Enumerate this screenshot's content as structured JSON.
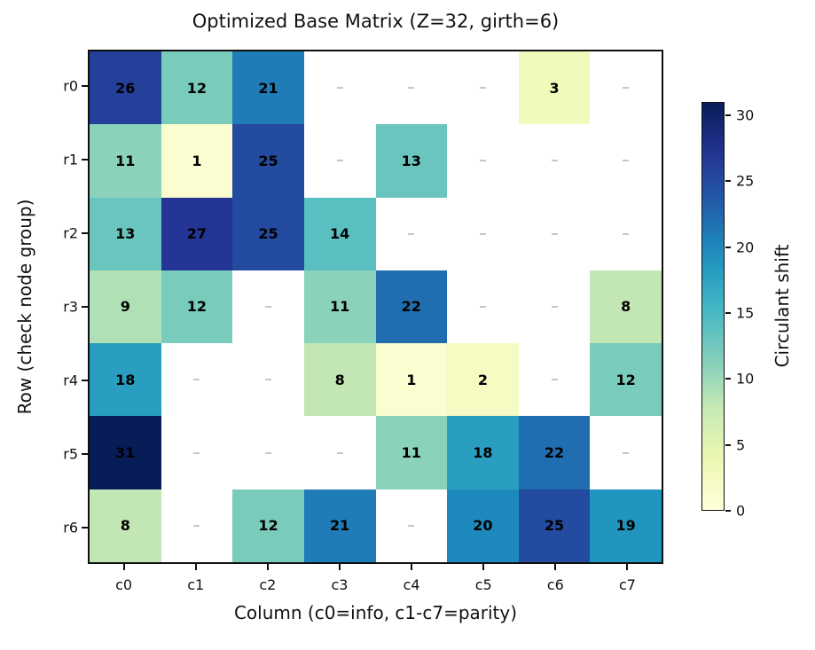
{
  "chart_data": {
    "type": "heatmap",
    "title": "Optimized Base Matrix (Z=32, girth=6)",
    "xlabel": "Column (c0=info, c1-c7=parity)",
    "ylabel": "Row (check node group)",
    "colorbar_label": "Circulant shift",
    "row_labels": [
      "r0",
      "r1",
      "r2",
      "r3",
      "r4",
      "r5",
      "r6"
    ],
    "col_labels": [
      "c0",
      "c1",
      "c2",
      "c3",
      "c4",
      "c5",
      "c6",
      "c7"
    ],
    "matrix": [
      [
        26,
        12,
        21,
        null,
        null,
        null,
        3,
        null
      ],
      [
        11,
        1,
        25,
        null,
        13,
        null,
        null,
        null
      ],
      [
        13,
        27,
        25,
        14,
        null,
        null,
        null,
        null
      ],
      [
        9,
        12,
        null,
        11,
        22,
        null,
        null,
        8
      ],
      [
        18,
        null,
        null,
        8,
        1,
        2,
        null,
        12
      ],
      [
        31,
        null,
        null,
        null,
        11,
        18,
        22,
        null
      ],
      [
        8,
        null,
        12,
        21,
        null,
        20,
        25,
        19
      ]
    ],
    "empty_marker": "-",
    "vmin": 0,
    "vmax": 31,
    "colormap": "YlGnBu",
    "colorbar_ticks": [
      0,
      5,
      10,
      15,
      20,
      25,
      30
    ],
    "colors": {
      "cmap_stops": [
        [
          0.0,
          "#ffffd9"
        ],
        [
          0.125,
          "#edf8b1"
        ],
        [
          0.25,
          "#c7e9b4"
        ],
        [
          0.375,
          "#7fcdbb"
        ],
        [
          0.5,
          "#41b6c4"
        ],
        [
          0.625,
          "#1d91c0"
        ],
        [
          0.75,
          "#225ea8"
        ],
        [
          0.875,
          "#253494"
        ],
        [
          1.0,
          "#081d58"
        ]
      ],
      "cell_text": "#000000",
      "empty_dash": "#c6c6c6",
      "axis": "#0f0f0f"
    },
    "legend_position": "right-colorbar",
    "grid": false
  }
}
